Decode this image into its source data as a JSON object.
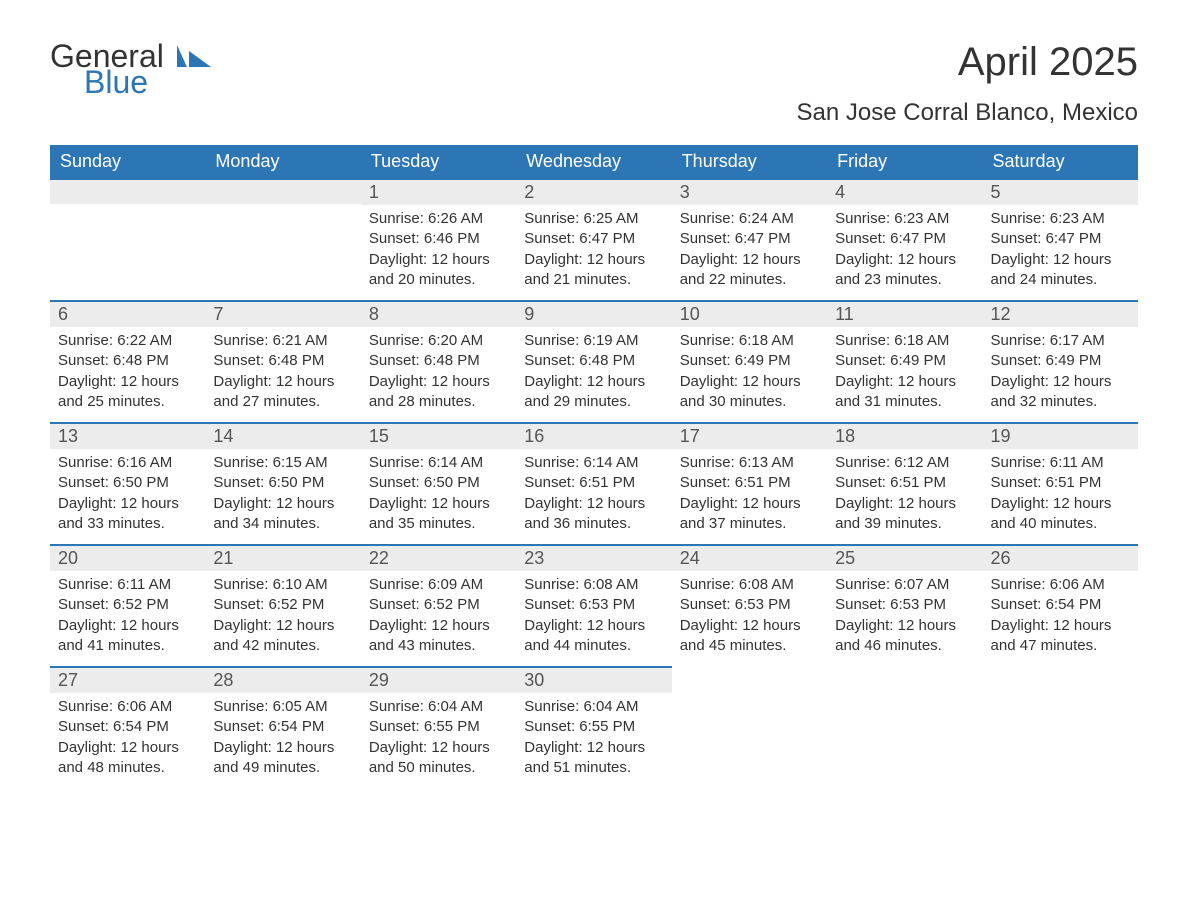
{
  "brand": {
    "word1": "General",
    "word2": "Blue",
    "logo_color": "#2d76b6",
    "text_color": "#333333"
  },
  "title": "April 2025",
  "location": "San Jose Corral Blanco, Mexico",
  "colors": {
    "header_bg": "#2d76b6",
    "header_text": "#ffffff",
    "daynum_bg": "#ececec",
    "daynum_border": "#2d76b6",
    "body_text": "#333333",
    "page_bg": "#ffffff"
  },
  "day_headers": [
    "Sunday",
    "Monday",
    "Tuesday",
    "Wednesday",
    "Thursday",
    "Friday",
    "Saturday"
  ],
  "weeks": [
    [
      null,
      null,
      {
        "n": "1",
        "sunrise": "Sunrise: 6:26 AM",
        "sunset": "Sunset: 6:46 PM",
        "daylight": "Daylight: 12 hours and 20 minutes."
      },
      {
        "n": "2",
        "sunrise": "Sunrise: 6:25 AM",
        "sunset": "Sunset: 6:47 PM",
        "daylight": "Daylight: 12 hours and 21 minutes."
      },
      {
        "n": "3",
        "sunrise": "Sunrise: 6:24 AM",
        "sunset": "Sunset: 6:47 PM",
        "daylight": "Daylight: 12 hours and 22 minutes."
      },
      {
        "n": "4",
        "sunrise": "Sunrise: 6:23 AM",
        "sunset": "Sunset: 6:47 PM",
        "daylight": "Daylight: 12 hours and 23 minutes."
      },
      {
        "n": "5",
        "sunrise": "Sunrise: 6:23 AM",
        "sunset": "Sunset: 6:47 PM",
        "daylight": "Daylight: 12 hours and 24 minutes."
      }
    ],
    [
      {
        "n": "6",
        "sunrise": "Sunrise: 6:22 AM",
        "sunset": "Sunset: 6:48 PM",
        "daylight": "Daylight: 12 hours and 25 minutes."
      },
      {
        "n": "7",
        "sunrise": "Sunrise: 6:21 AM",
        "sunset": "Sunset: 6:48 PM",
        "daylight": "Daylight: 12 hours and 27 minutes."
      },
      {
        "n": "8",
        "sunrise": "Sunrise: 6:20 AM",
        "sunset": "Sunset: 6:48 PM",
        "daylight": "Daylight: 12 hours and 28 minutes."
      },
      {
        "n": "9",
        "sunrise": "Sunrise: 6:19 AM",
        "sunset": "Sunset: 6:48 PM",
        "daylight": "Daylight: 12 hours and 29 minutes."
      },
      {
        "n": "10",
        "sunrise": "Sunrise: 6:18 AM",
        "sunset": "Sunset: 6:49 PM",
        "daylight": "Daylight: 12 hours and 30 minutes."
      },
      {
        "n": "11",
        "sunrise": "Sunrise: 6:18 AM",
        "sunset": "Sunset: 6:49 PM",
        "daylight": "Daylight: 12 hours and 31 minutes."
      },
      {
        "n": "12",
        "sunrise": "Sunrise: 6:17 AM",
        "sunset": "Sunset: 6:49 PM",
        "daylight": "Daylight: 12 hours and 32 minutes."
      }
    ],
    [
      {
        "n": "13",
        "sunrise": "Sunrise: 6:16 AM",
        "sunset": "Sunset: 6:50 PM",
        "daylight": "Daylight: 12 hours and 33 minutes."
      },
      {
        "n": "14",
        "sunrise": "Sunrise: 6:15 AM",
        "sunset": "Sunset: 6:50 PM",
        "daylight": "Daylight: 12 hours and 34 minutes."
      },
      {
        "n": "15",
        "sunrise": "Sunrise: 6:14 AM",
        "sunset": "Sunset: 6:50 PM",
        "daylight": "Daylight: 12 hours and 35 minutes."
      },
      {
        "n": "16",
        "sunrise": "Sunrise: 6:14 AM",
        "sunset": "Sunset: 6:51 PM",
        "daylight": "Daylight: 12 hours and 36 minutes."
      },
      {
        "n": "17",
        "sunrise": "Sunrise: 6:13 AM",
        "sunset": "Sunset: 6:51 PM",
        "daylight": "Daylight: 12 hours and 37 minutes."
      },
      {
        "n": "18",
        "sunrise": "Sunrise: 6:12 AM",
        "sunset": "Sunset: 6:51 PM",
        "daylight": "Daylight: 12 hours and 39 minutes."
      },
      {
        "n": "19",
        "sunrise": "Sunrise: 6:11 AM",
        "sunset": "Sunset: 6:51 PM",
        "daylight": "Daylight: 12 hours and 40 minutes."
      }
    ],
    [
      {
        "n": "20",
        "sunrise": "Sunrise: 6:11 AM",
        "sunset": "Sunset: 6:52 PM",
        "daylight": "Daylight: 12 hours and 41 minutes."
      },
      {
        "n": "21",
        "sunrise": "Sunrise: 6:10 AM",
        "sunset": "Sunset: 6:52 PM",
        "daylight": "Daylight: 12 hours and 42 minutes."
      },
      {
        "n": "22",
        "sunrise": "Sunrise: 6:09 AM",
        "sunset": "Sunset: 6:52 PM",
        "daylight": "Daylight: 12 hours and 43 minutes."
      },
      {
        "n": "23",
        "sunrise": "Sunrise: 6:08 AM",
        "sunset": "Sunset: 6:53 PM",
        "daylight": "Daylight: 12 hours and 44 minutes."
      },
      {
        "n": "24",
        "sunrise": "Sunrise: 6:08 AM",
        "sunset": "Sunset: 6:53 PM",
        "daylight": "Daylight: 12 hours and 45 minutes."
      },
      {
        "n": "25",
        "sunrise": "Sunrise: 6:07 AM",
        "sunset": "Sunset: 6:53 PM",
        "daylight": "Daylight: 12 hours and 46 minutes."
      },
      {
        "n": "26",
        "sunrise": "Sunrise: 6:06 AM",
        "sunset": "Sunset: 6:54 PM",
        "daylight": "Daylight: 12 hours and 47 minutes."
      }
    ],
    [
      {
        "n": "27",
        "sunrise": "Sunrise: 6:06 AM",
        "sunset": "Sunset: 6:54 PM",
        "daylight": "Daylight: 12 hours and 48 minutes."
      },
      {
        "n": "28",
        "sunrise": "Sunrise: 6:05 AM",
        "sunset": "Sunset: 6:54 PM",
        "daylight": "Daylight: 12 hours and 49 minutes."
      },
      {
        "n": "29",
        "sunrise": "Sunrise: 6:04 AM",
        "sunset": "Sunset: 6:55 PM",
        "daylight": "Daylight: 12 hours and 50 minutes."
      },
      {
        "n": "30",
        "sunrise": "Sunrise: 6:04 AM",
        "sunset": "Sunset: 6:55 PM",
        "daylight": "Daylight: 12 hours and 51 minutes."
      },
      null,
      null,
      null
    ]
  ]
}
